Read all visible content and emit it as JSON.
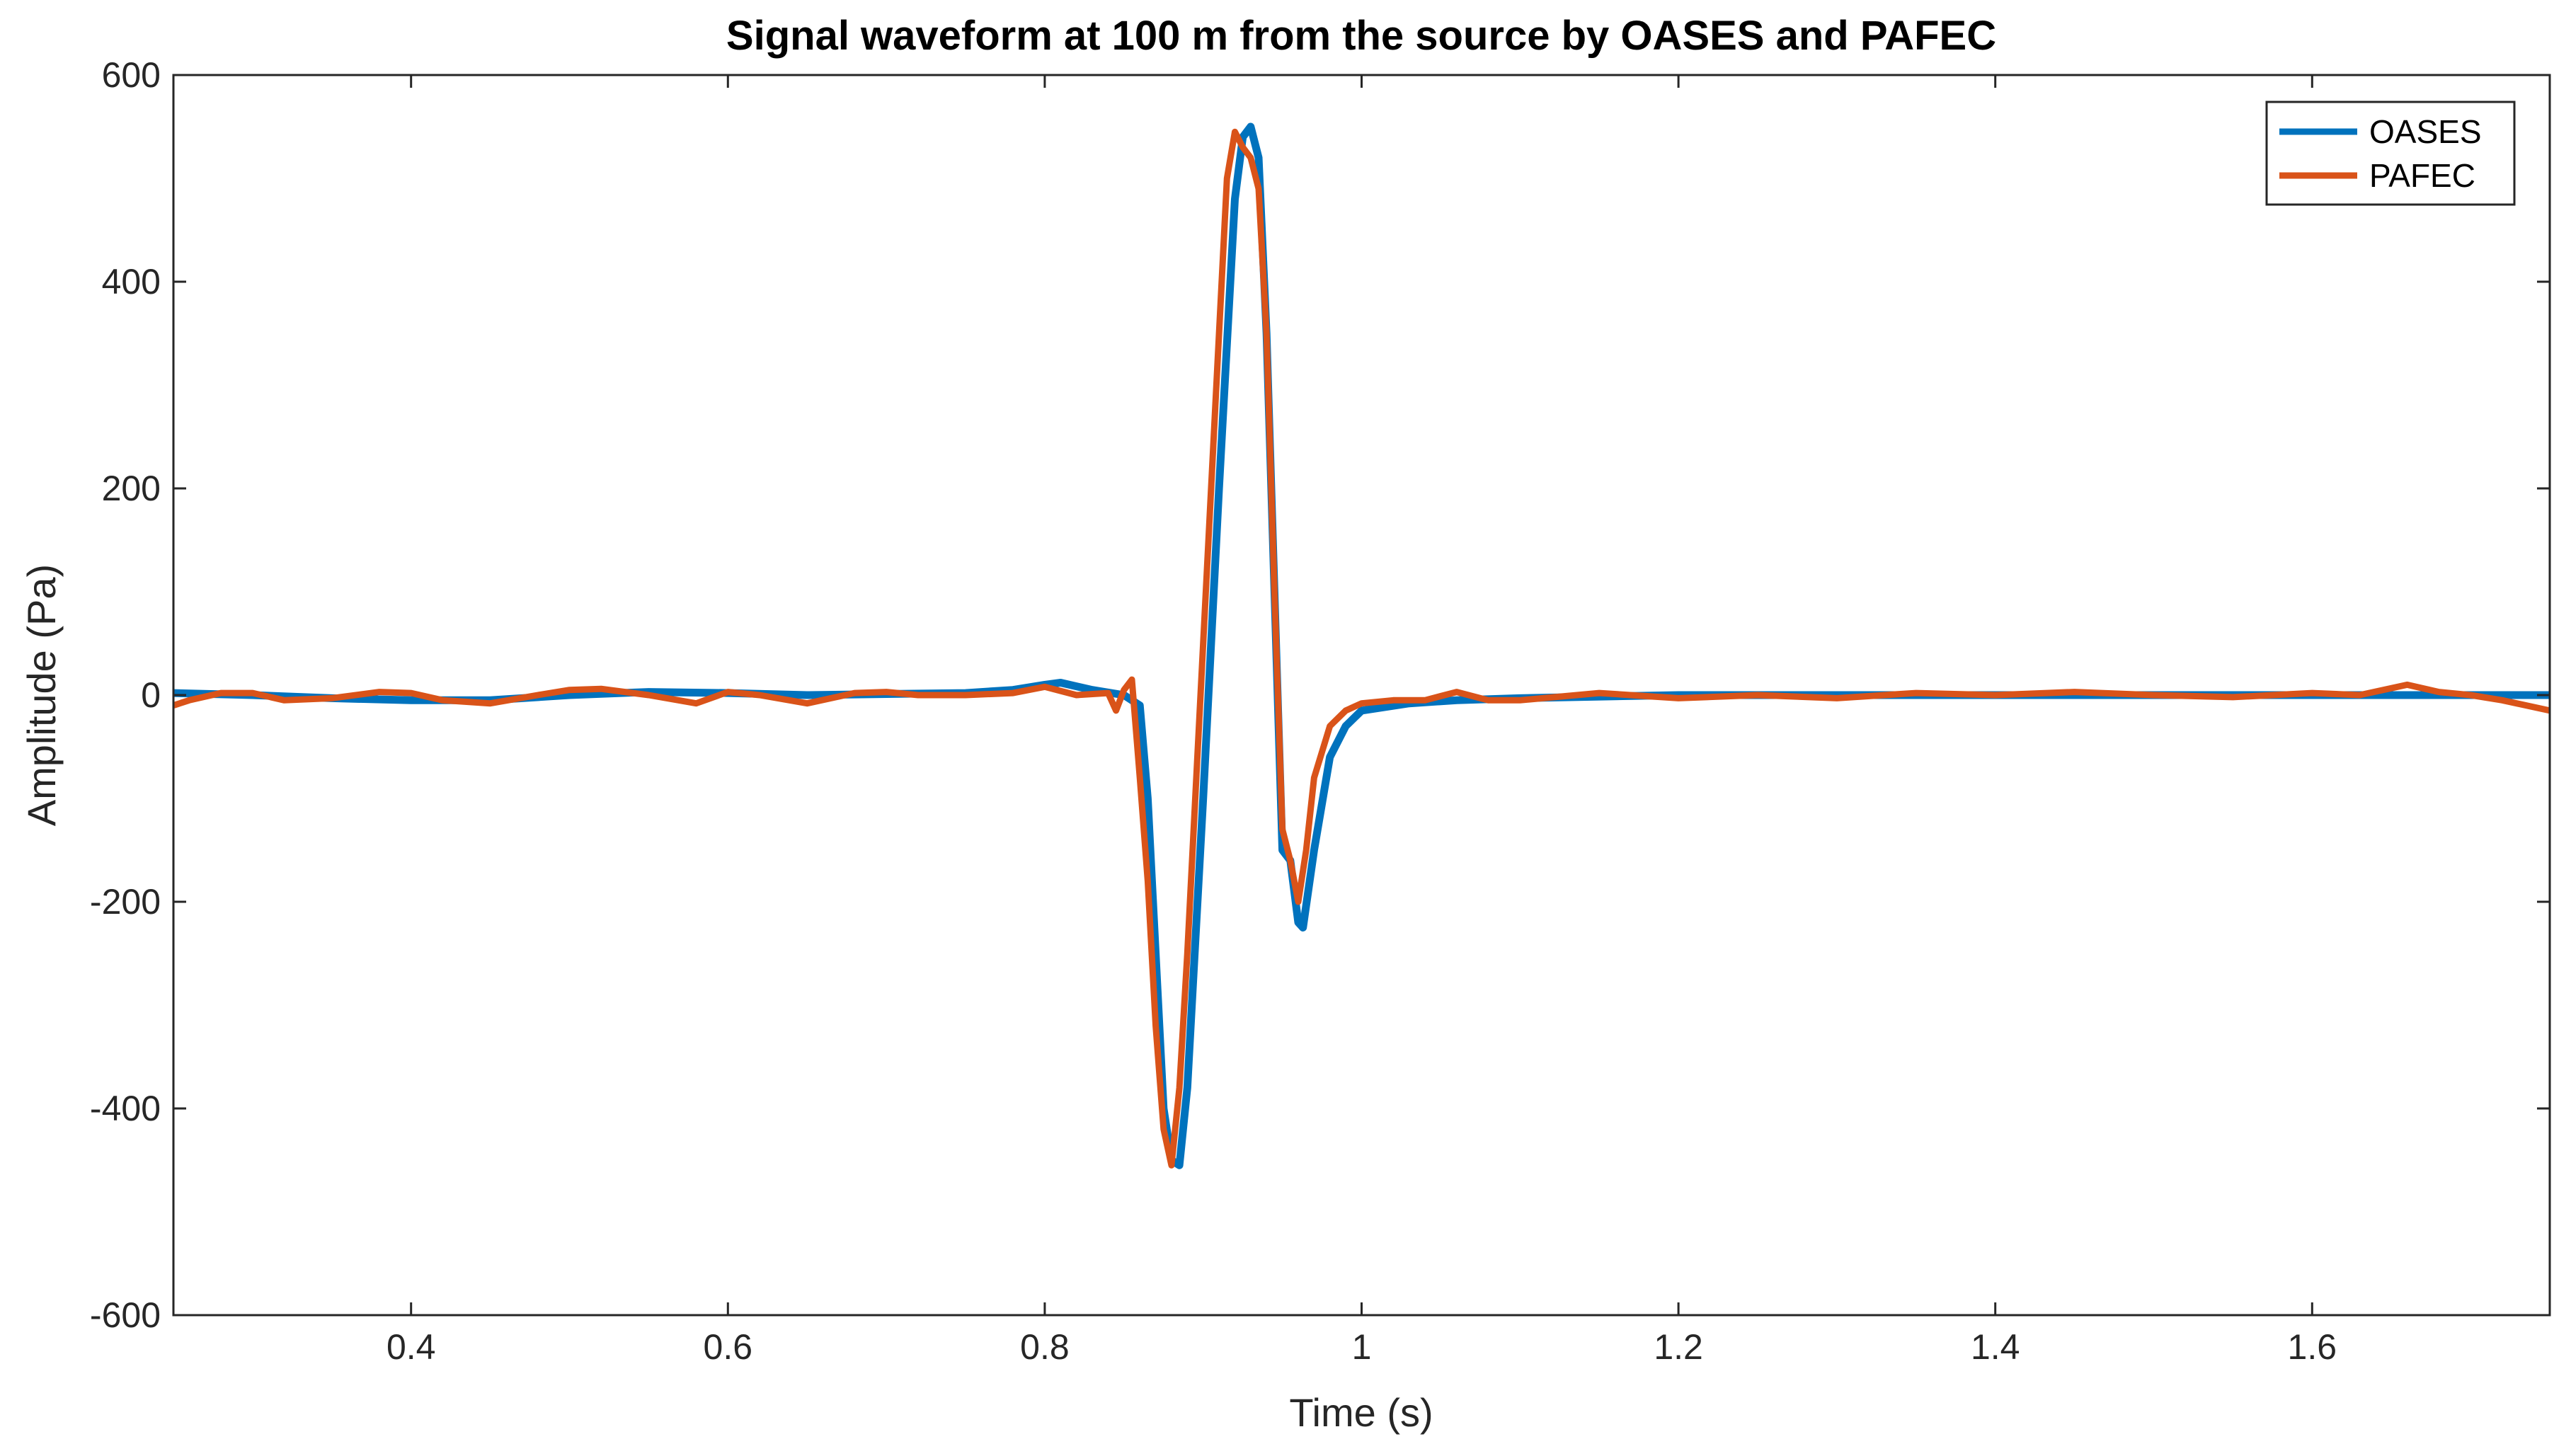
{
  "chart_data": {
    "type": "line",
    "title": "Signal waveform at 100 m from the source by OASES and PAFEC",
    "xlabel": "Time (s)",
    "ylabel": "Amplitude (Pa)",
    "xlim": [
      0.25,
      1.75
    ],
    "ylim": [
      -600,
      600
    ],
    "xticks": [
      0.4,
      0.6,
      0.8,
      1,
      1.2,
      1.4,
      1.6
    ],
    "xtick_labels": [
      "0.4",
      "0.6",
      "0.8",
      "1",
      "1.2",
      "1.4",
      "1.6"
    ],
    "yticks": [
      -600,
      -400,
      -200,
      0,
      200,
      400,
      600
    ],
    "ytick_labels": [
      "-600",
      "-400",
      "-200",
      "0",
      "200",
      "400",
      "600"
    ],
    "grid": false,
    "legend_position": "top-right",
    "series": [
      {
        "name": "OASES",
        "color": "#0072BD",
        "x": [
          0.25,
          0.3,
          0.35,
          0.4,
          0.45,
          0.5,
          0.55,
          0.6,
          0.65,
          0.7,
          0.75,
          0.78,
          0.8,
          0.81,
          0.83,
          0.85,
          0.86,
          0.865,
          0.87,
          0.875,
          0.88,
          0.885,
          0.89,
          0.9,
          0.91,
          0.92,
          0.925,
          0.93,
          0.935,
          0.94,
          0.945,
          0.95,
          0.955,
          0.96,
          0.963,
          0.97,
          0.98,
          0.99,
          1.0,
          1.03,
          1.06,
          1.1,
          1.2,
          1.3,
          1.4,
          1.5,
          1.6,
          1.65,
          1.7,
          1.75
        ],
        "y": [
          2,
          0,
          -3,
          -5,
          -5,
          0,
          3,
          2,
          0,
          1,
          2,
          5,
          10,
          12,
          5,
          0,
          -10,
          -100,
          -250,
          -400,
          -450,
          -455,
          -380,
          -100,
          200,
          480,
          540,
          550,
          520,
          350,
          100,
          -150,
          -160,
          -220,
          -225,
          -150,
          -60,
          -30,
          -15,
          -8,
          -5,
          -3,
          0,
          0,
          0,
          0,
          0,
          0,
          0,
          0
        ]
      },
      {
        "name": "PAFEC",
        "color": "#D95319",
        "x": [
          0.25,
          0.26,
          0.28,
          0.3,
          0.32,
          0.35,
          0.38,
          0.4,
          0.42,
          0.45,
          0.48,
          0.5,
          0.52,
          0.55,
          0.58,
          0.6,
          0.62,
          0.65,
          0.68,
          0.7,
          0.72,
          0.75,
          0.78,
          0.8,
          0.82,
          0.84,
          0.845,
          0.85,
          0.855,
          0.86,
          0.865,
          0.87,
          0.875,
          0.88,
          0.885,
          0.89,
          0.9,
          0.91,
          0.915,
          0.92,
          0.925,
          0.93,
          0.935,
          0.94,
          0.945,
          0.95,
          0.955,
          0.96,
          0.965,
          0.97,
          0.98,
          0.99,
          1.0,
          1.02,
          1.04,
          1.06,
          1.08,
          1.1,
          1.15,
          1.2,
          1.25,
          1.3,
          1.35,
          1.4,
          1.45,
          1.5,
          1.55,
          1.6,
          1.63,
          1.66,
          1.68,
          1.7,
          1.72,
          1.75
        ],
        "y": [
          -10,
          -5,
          2,
          2,
          -5,
          -3,
          3,
          2,
          -5,
          -8,
          0,
          5,
          6,
          0,
          -8,
          3,
          0,
          -8,
          2,
          3,
          0,
          0,
          2,
          8,
          0,
          2,
          -15,
          5,
          15,
          -80,
          -180,
          -320,
          -420,
          -455,
          -380,
          -250,
          50,
          350,
          500,
          545,
          530,
          520,
          490,
          350,
          100,
          -130,
          -160,
          -200,
          -150,
          -80,
          -30,
          -15,
          -8,
          -5,
          -5,
          3,
          -5,
          -5,
          2,
          -3,
          0,
          -3,
          2,
          0,
          3,
          0,
          -2,
          2,
          0,
          10,
          3,
          0,
          -5,
          -15
        ]
      }
    ]
  }
}
